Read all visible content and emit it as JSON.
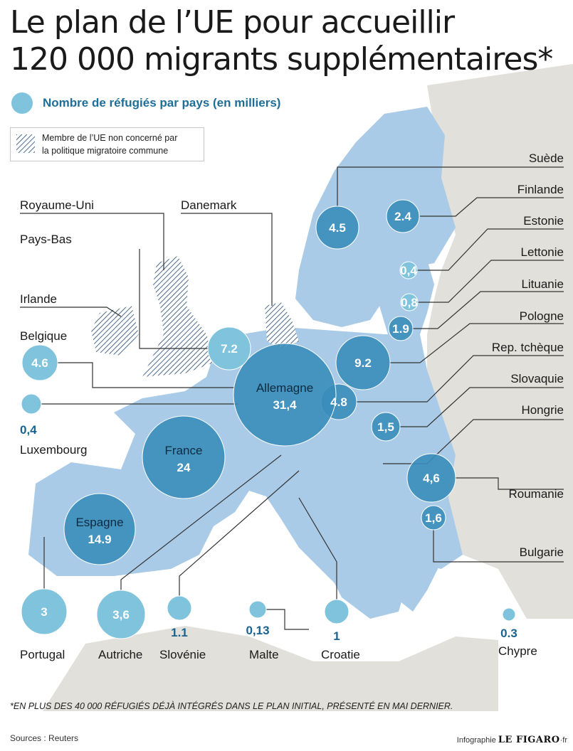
{
  "title": {
    "line1": "Le plan de l’UE pour accueillir",
    "line2": "120 000 migrants supplémentaires*"
  },
  "legend": {
    "bubble_label": "Nombre de réfugiés par pays  (en milliers)",
    "hatch_label_1": "Membre de l’UE non concerné par",
    "hatch_label_2": "la politique migratoire commune"
  },
  "countries": [
    {
      "id": "suede",
      "name": "Suède",
      "value": "4.5"
    },
    {
      "id": "finlande",
      "name": "Finlande",
      "value": "2.4"
    },
    {
      "id": "estonie",
      "name": "Estonie",
      "value": "0,4"
    },
    {
      "id": "lettonie",
      "name": "Lettonie",
      "value": "0,8"
    },
    {
      "id": "lituanie",
      "name": "Lituanie",
      "value": "1.9"
    },
    {
      "id": "pologne",
      "name": "Pologne",
      "value": "9.2"
    },
    {
      "id": "reptcheque",
      "name": "Rep. tchèque",
      "value": "4.8"
    },
    {
      "id": "slovaquie",
      "name": "Slovaquie",
      "value": "1,5"
    },
    {
      "id": "hongrie",
      "name": "Hongrie",
      "value": ""
    },
    {
      "id": "roumanie",
      "name": "Roumanie",
      "value": "4,6"
    },
    {
      "id": "bulgarie",
      "name": "Bulgarie",
      "value": "1,6"
    },
    {
      "id": "allemagne",
      "name": "Allemagne",
      "value": "31,4"
    },
    {
      "id": "paysbas",
      "name": "Pays-Bas",
      "value": "7.2"
    },
    {
      "id": "belgique",
      "name": "Belgique",
      "value": "4.6"
    },
    {
      "id": "luxembourg",
      "name": "Luxembourg",
      "value": "0,4"
    },
    {
      "id": "france",
      "name": "France",
      "value": "24"
    },
    {
      "id": "espagne",
      "name": "Espagne",
      "value": "14.9"
    },
    {
      "id": "portugal",
      "name": "Portugal",
      "value": "3"
    },
    {
      "id": "autriche",
      "name": "Autriche",
      "value": "3,6"
    },
    {
      "id": "slovenie",
      "name": "Slovénie",
      "value": "1.1"
    },
    {
      "id": "malte",
      "name": "Malte",
      "value": "0,13"
    },
    {
      "id": "croatie",
      "name": "Croatie",
      "value": "1"
    },
    {
      "id": "chypre",
      "name": "Chypre",
      "value": "0.3"
    }
  ],
  "non_concerned": [
    "Royaume-Uni",
    "Irlande",
    "Danemark"
  ],
  "footnote": "*EN PLUS DES 40 000 RÉFUGIÉS DÉJÀ INTÉGRÉS DANS LE PLAN INITIAL, PRÉSENTÉ EN MAI DERNIER.",
  "source": "Sources : Reuters",
  "credit_prefix": "Infographie",
  "credit_brand": "LE FIGARO",
  "credit_suffix": "·fr",
  "colors": {
    "eu_land": "#a9cbe8",
    "non_eu_land": "#e2e0da",
    "bubble_dark": "#3a8dba",
    "bubble_light": "#7fc4dc",
    "value_text": "#1a6390"
  }
}
